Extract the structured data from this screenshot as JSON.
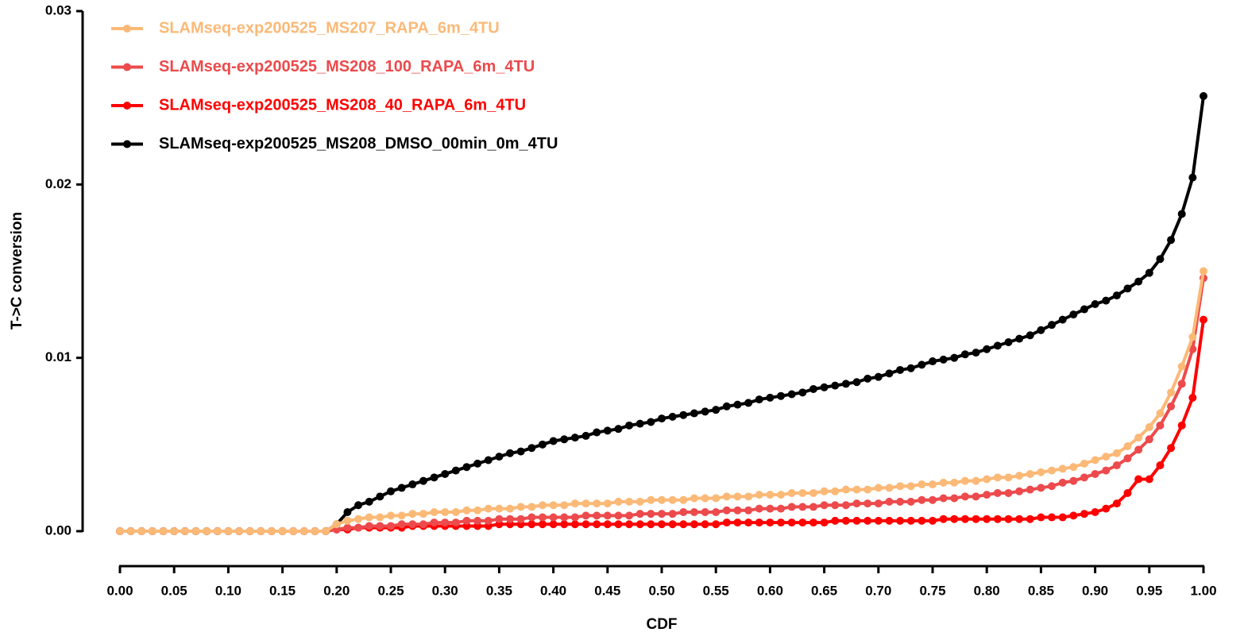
{
  "chart_data": {
    "type": "line",
    "y_label": "T->C conversion",
    "x_label": "CDF",
    "x": [
      0,
      0.01,
      0.02,
      0.03,
      0.04,
      0.05,
      0.06,
      0.07,
      0.08,
      0.09,
      0.1,
      0.11,
      0.12,
      0.13,
      0.14,
      0.15,
      0.16,
      0.17,
      0.18,
      0.19,
      0.2,
      0.21,
      0.22,
      0.23,
      0.24,
      0.25,
      0.26,
      0.27,
      0.28,
      0.29,
      0.3,
      0.31,
      0.32,
      0.33,
      0.34,
      0.35,
      0.36,
      0.37,
      0.38,
      0.39,
      0.4,
      0.41,
      0.42,
      0.43,
      0.44,
      0.45,
      0.46,
      0.47,
      0.48,
      0.49,
      0.5,
      0.51,
      0.52,
      0.53,
      0.54,
      0.55,
      0.56,
      0.57,
      0.58,
      0.59,
      0.6,
      0.61,
      0.62,
      0.63,
      0.64,
      0.65,
      0.66,
      0.67,
      0.68,
      0.69,
      0.7,
      0.71,
      0.72,
      0.73,
      0.74,
      0.75,
      0.76,
      0.77,
      0.78,
      0.79,
      0.8,
      0.81,
      0.82,
      0.83,
      0.84,
      0.85,
      0.86,
      0.87,
      0.88,
      0.89,
      0.9,
      0.91,
      0.92,
      0.93,
      0.94,
      0.95,
      0.96,
      0.97,
      0.98,
      0.99,
      1
    ],
    "series": [
      {
        "name": "SLAMseq-exp200525_MS207_RAPA_6m_4TU",
        "color": "#fbb977",
        "values": [
          0,
          0,
          0,
          0,
          0,
          0,
          0,
          0,
          0,
          0,
          0,
          0,
          0,
          0,
          0,
          0,
          0,
          0,
          0,
          0,
          0.0004,
          0.0006,
          0.0007,
          0.0008,
          0.0008,
          0.0009,
          0.0009,
          0.001,
          0.001,
          0.0011,
          0.0011,
          0.0011,
          0.0012,
          0.0012,
          0.0013,
          0.0013,
          0.0013,
          0.0014,
          0.0014,
          0.0015,
          0.0015,
          0.0015,
          0.0016,
          0.0016,
          0.0016,
          0.0016,
          0.0017,
          0.0017,
          0.0017,
          0.0018,
          0.0018,
          0.0018,
          0.0018,
          0.0019,
          0.0019,
          0.0019,
          0.002,
          0.002,
          0.002,
          0.0021,
          0.0021,
          0.0021,
          0.0022,
          0.0022,
          0.0022,
          0.0023,
          0.0023,
          0.0024,
          0.0024,
          0.0024,
          0.0025,
          0.0025,
          0.0026,
          0.0026,
          0.0027,
          0.0027,
          0.0028,
          0.0028,
          0.0029,
          0.0029,
          0.003,
          0.0031,
          0.0031,
          0.0032,
          0.0033,
          0.0034,
          0.0035,
          0.0036,
          0.0037,
          0.0039,
          0.0041,
          0.0043,
          0.0045,
          0.0049,
          0.0054,
          0.006,
          0.0068,
          0.008,
          0.0095,
          0.0112,
          0.015
        ]
      },
      {
        "name": "SLAMseq-exp200525_MS208_100_RAPA_6m_4TU",
        "color": "#ec4a4c",
        "values": [
          0,
          0,
          0,
          0,
          0,
          0,
          0,
          0,
          0,
          0,
          0,
          0,
          0,
          0,
          0,
          0,
          0,
          0,
          0,
          0,
          0.0001,
          0.0002,
          0.0002,
          0.0003,
          0.0003,
          0.0003,
          0.0004,
          0.0004,
          0.0004,
          0.0005,
          0.0005,
          0.0005,
          0.0006,
          0.0006,
          0.0006,
          0.0007,
          0.0007,
          0.0007,
          0.0008,
          0.0008,
          0.0008,
          0.0008,
          0.0008,
          0.0009,
          0.0009,
          0.0009,
          0.0009,
          0.0009,
          0.001,
          0.001,
          0.001,
          0.001,
          0.0011,
          0.0011,
          0.0011,
          0.0011,
          0.0012,
          0.0012,
          0.0012,
          0.0013,
          0.0013,
          0.0013,
          0.0014,
          0.0014,
          0.0014,
          0.0015,
          0.0015,
          0.0015,
          0.0016,
          0.0016,
          0.0016,
          0.0017,
          0.0017,
          0.0017,
          0.0018,
          0.0018,
          0.0019,
          0.0019,
          0.002,
          0.002,
          0.0021,
          0.0022,
          0.0022,
          0.0023,
          0.0024,
          0.0025,
          0.0026,
          0.0028,
          0.0029,
          0.0031,
          0.0033,
          0.0035,
          0.0038,
          0.0042,
          0.0047,
          0.0053,
          0.0061,
          0.0072,
          0.0085,
          0.0105,
          0.0146
        ]
      },
      {
        "name": "SLAMseq-exp200525_MS208_40_RAPA_6m_4TU",
        "color": "#ff0000",
        "values": [
          0,
          0,
          0,
          0,
          0,
          0,
          0,
          0,
          0,
          0,
          0,
          0,
          0,
          0,
          0,
          0,
          0,
          0,
          0,
          0,
          0.0001,
          0.0001,
          0.0002,
          0.0002,
          0.0002,
          0.0002,
          0.0002,
          0.0003,
          0.0003,
          0.0003,
          0.0003,
          0.0003,
          0.0003,
          0.0003,
          0.0003,
          0.0004,
          0.0004,
          0.0004,
          0.0004,
          0.0004,
          0.0004,
          0.0004,
          0.0004,
          0.0004,
          0.0004,
          0.0004,
          0.0004,
          0.0004,
          0.0004,
          0.0004,
          0.0004,
          0.0004,
          0.0004,
          0.0004,
          0.0004,
          0.0004,
          0.0005,
          0.0005,
          0.0005,
          0.0005,
          0.0005,
          0.0005,
          0.0005,
          0.0005,
          0.0005,
          0.0005,
          0.0006,
          0.0006,
          0.0006,
          0.0006,
          0.0006,
          0.0006,
          0.0006,
          0.0006,
          0.0006,
          0.0006,
          0.0007,
          0.0007,
          0.0007,
          0.0007,
          0.0007,
          0.0007,
          0.0007,
          0.0007,
          0.0007,
          0.0008,
          0.0008,
          0.0008,
          0.0009,
          0.001,
          0.0011,
          0.0013,
          0.0016,
          0.0022,
          0.003,
          0.003,
          0.0038,
          0.0048,
          0.0061,
          0.0077,
          0.0122
        ]
      },
      {
        "name": "SLAMseq-exp200525_MS208_DMSO_00min_0m_4TU",
        "color": "#000000",
        "values": [
          0,
          0,
          0,
          0,
          0,
          0,
          0,
          0,
          0,
          0,
          0,
          0,
          0,
          0,
          0,
          0,
          0,
          0,
          0,
          0,
          0.0004,
          0.0011,
          0.0015,
          0.0017,
          0.002,
          0.0023,
          0.0025,
          0.0027,
          0.0029,
          0.0031,
          0.0033,
          0.0035,
          0.0037,
          0.0039,
          0.0041,
          0.0043,
          0.0045,
          0.0046,
          0.0048,
          0.005,
          0.0052,
          0.0053,
          0.0054,
          0.0055,
          0.0057,
          0.0058,
          0.0059,
          0.0061,
          0.0062,
          0.0063,
          0.0065,
          0.0066,
          0.0067,
          0.0068,
          0.0069,
          0.007,
          0.0072,
          0.0073,
          0.0074,
          0.0076,
          0.0077,
          0.0078,
          0.0079,
          0.008,
          0.0082,
          0.0083,
          0.0084,
          0.0085,
          0.0086,
          0.0088,
          0.0089,
          0.0091,
          0.0093,
          0.0094,
          0.0096,
          0.0098,
          0.0099,
          0.01,
          0.0102,
          0.0103,
          0.0105,
          0.0107,
          0.0109,
          0.0111,
          0.0113,
          0.0116,
          0.0119,
          0.0122,
          0.0125,
          0.0128,
          0.0131,
          0.0133,
          0.0136,
          0.014,
          0.0144,
          0.0149,
          0.0157,
          0.0168,
          0.0183,
          0.0204,
          0.0251
        ]
      }
    ],
    "xlim": [
      0,
      1
    ],
    "ylim": [
      0,
      0.03
    ],
    "xticks": [
      {
        "value": 0,
        "label": "0.00"
      },
      0.05,
      {
        "value": 0.1,
        "label": "0.10"
      },
      0.15,
      {
        "value": 0.2,
        "label": "0.20"
      },
      0.25,
      {
        "value": 0.3,
        "label": "0.30"
      },
      0.35,
      {
        "value": 0.4,
        "label": "0.40"
      },
      0.45,
      {
        "value": 0.5,
        "label": "0.50"
      },
      0.55,
      {
        "value": 0.6,
        "label": "0.60"
      },
      0.65,
      {
        "value": 0.7,
        "label": "0.70"
      },
      0.75,
      {
        "value": 0.8,
        "label": "0.80"
      },
      0.85,
      {
        "value": 0.9,
        "label": "0.90"
      },
      0.95,
      {
        "value": 1,
        "label": "1.00"
      }
    ],
    "yticks": [
      {
        "value": 0,
        "label": "0.00"
      },
      0.01,
      0.02,
      0.03
    ],
    "legend": "top-left"
  }
}
